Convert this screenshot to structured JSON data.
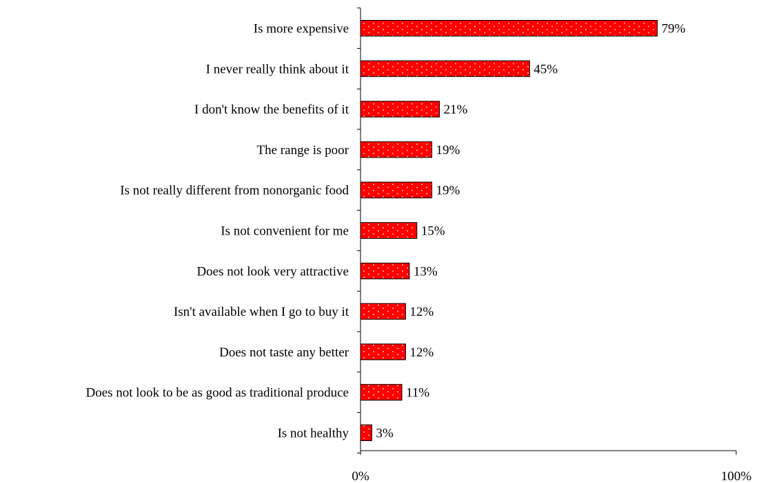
{
  "colors": {
    "bar_fill": "#ff0000",
    "bar_dots": "#ffffff",
    "bar_stroke": "#000000",
    "axis": "#000000"
  },
  "chart_data": {
    "type": "bar",
    "orientation": "horizontal",
    "title": "",
    "xlabel": "",
    "ylabel": "",
    "xlim": [
      0,
      100
    ],
    "grid": false,
    "legend": "none",
    "fill_pattern": "dotted",
    "categories": [
      "Is more expensive",
      "I never really think about it",
      "I don't know the benefits of it",
      "The range is poor",
      "Is not really different from nonorganic food",
      "Is not convenient for me",
      "Does not look very attractive",
      "Isn't available when I go to buy it",
      "Does not taste any better",
      "Does not look to be as good as traditional produce",
      "Is not healthy"
    ],
    "values": [
      79,
      45,
      21,
      19,
      19,
      15,
      13,
      12,
      12,
      11,
      3
    ],
    "value_labels": [
      "79%",
      "45%",
      "21%",
      "19%",
      "19%",
      "15%",
      "13%",
      "12%",
      "12%",
      "11%",
      "3%"
    ],
    "x_ticks": [
      0,
      100
    ],
    "x_tick_labels": [
      "0%",
      "100%"
    ]
  }
}
